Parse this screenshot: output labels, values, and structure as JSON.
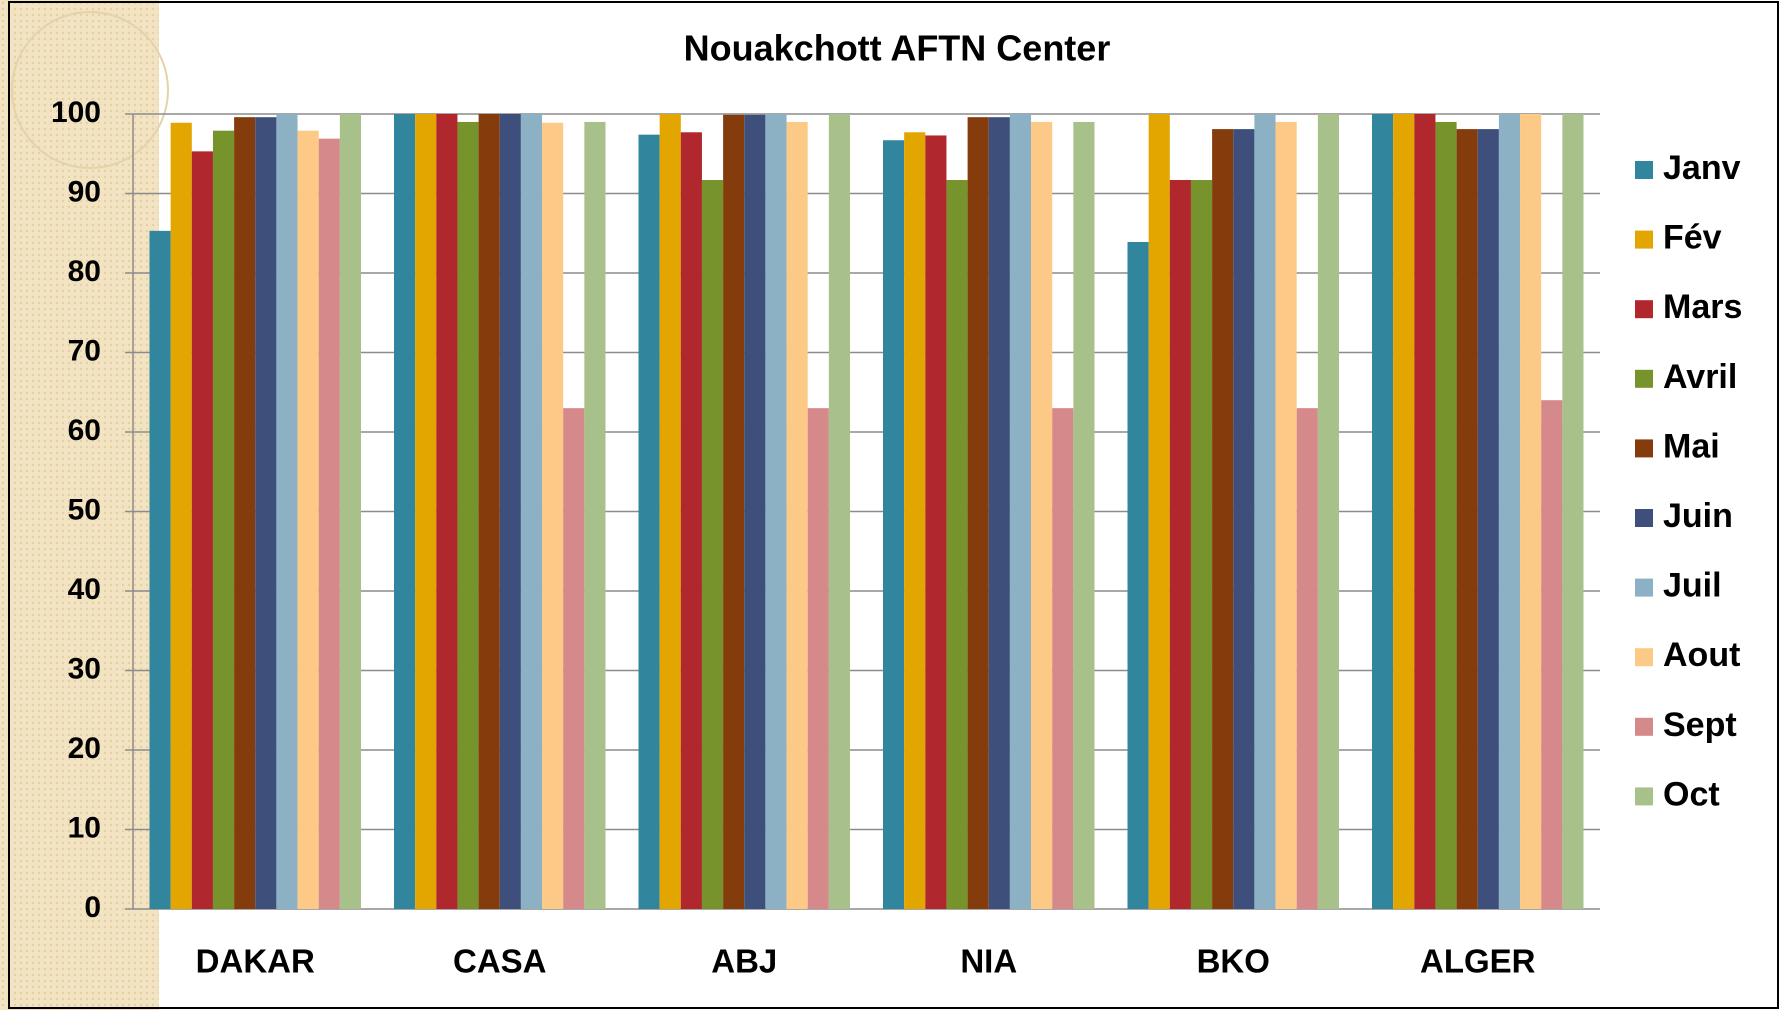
{
  "chart_data": {
    "type": "bar",
    "title": "Nouakchott AFTN Center",
    "categories": [
      "DAKAR",
      "CASA",
      "ABJ",
      "NIA",
      "BKO",
      "ALGER"
    ],
    "series": [
      {
        "name": "Janv",
        "color": "#31859c",
        "values": [
          85.3,
          100,
          97.4,
          96.7,
          83.9,
          100
        ]
      },
      {
        "name": "Fév",
        "color": "#e3a500",
        "values": [
          98.9,
          100,
          100,
          97.7,
          100,
          100
        ]
      },
      {
        "name": "Mars",
        "color": "#b0272d",
        "values": [
          95.3,
          100,
          97.7,
          97.3,
          91.7,
          100
        ]
      },
      {
        "name": "Avril",
        "color": "#77932b",
        "values": [
          97.9,
          99,
          91.7,
          91.7,
          91.7,
          99
        ]
      },
      {
        "name": "Mai",
        "color": "#843c0c",
        "values": [
          99.6,
          100,
          99.9,
          99.6,
          98.1,
          98.1
        ]
      },
      {
        "name": "Juin",
        "color": "#3f4f7b",
        "values": [
          99.6,
          100,
          99.9,
          99.6,
          98.1,
          98.1
        ]
      },
      {
        "name": "Juil",
        "color": "#8cb1c4",
        "values": [
          100,
          100,
          100,
          100,
          100,
          100
        ]
      },
      {
        "name": "Aout",
        "color": "#fcca86",
        "values": [
          97.9,
          98.9,
          99,
          99,
          99,
          100
        ]
      },
      {
        "name": "Sept",
        "color": "#d6898a",
        "values": [
          96.9,
          63,
          63,
          63,
          63,
          64
        ]
      },
      {
        "name": "Oct",
        "color": "#a8c18a",
        "values": [
          100,
          99,
          100,
          99,
          100,
          100
        ]
      }
    ],
    "ylim": [
      0,
      100
    ],
    "yticks": [
      0,
      10,
      20,
      30,
      40,
      50,
      60,
      70,
      80,
      90,
      100
    ],
    "grid": true,
    "legend": "right"
  }
}
